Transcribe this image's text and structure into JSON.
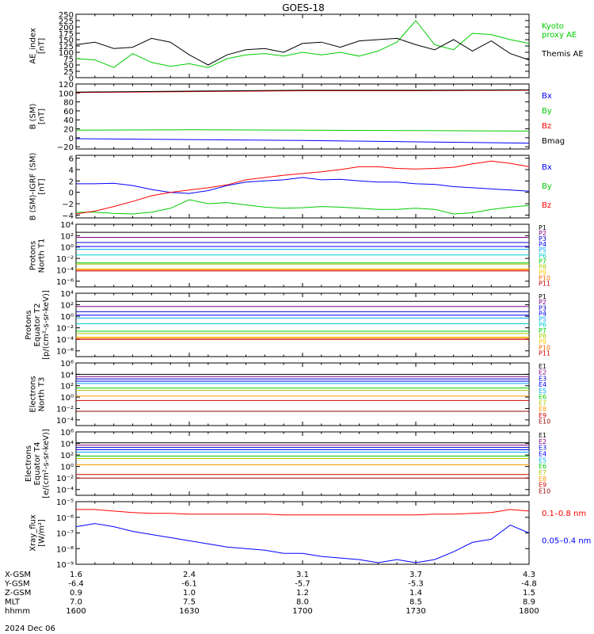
{
  "title": "GOES-18",
  "date": "2024 Dec 06",
  "x_axis": {
    "rows": [
      {
        "label": "X-GSM",
        "values": [
          "1.6",
          "2.4",
          "3.1",
          "3.7",
          "4.3"
        ]
      },
      {
        "label": "Y-GSM",
        "values": [
          "-6.4",
          "-6.1",
          "-5.7",
          "-5.3",
          "-4.8"
        ]
      },
      {
        "label": "Z-GSM",
        "values": [
          "0.9",
          "1.0",
          "1.2",
          "1.4",
          "1.5"
        ]
      },
      {
        "label": "MLT",
        "values": [
          "7.0",
          "7.5",
          "8.0",
          "8.5",
          "8.9"
        ]
      },
      {
        "label": "hhmm",
        "values": [
          "1600",
          "1630",
          "1700",
          "1730",
          "1800"
        ]
      }
    ]
  },
  "chart_data": [
    {
      "type": "line",
      "ylabel": "AE_index\n[nT]",
      "ylim": [
        0,
        250
      ],
      "yticks": [
        "0",
        "25",
        "50",
        "75",
        "100",
        "125",
        "150",
        "175",
        "200",
        "225",
        "250"
      ],
      "x": [
        1600,
        1605,
        1610,
        1615,
        1620,
        1625,
        1630,
        1635,
        1640,
        1645,
        1650,
        1655,
        1700,
        1705,
        1710,
        1715,
        1720,
        1725,
        1730,
        1735,
        1740,
        1745,
        1750,
        1755,
        1800
      ],
      "series": [
        {
          "name": "Kyoto proxy AE",
          "color": "#00cc00",
          "values": [
            75,
            70,
            40,
            95,
            60,
            45,
            55,
            40,
            75,
            90,
            95,
            85,
            100,
            90,
            100,
            85,
            105,
            140,
            225,
            130,
            110,
            175,
            170,
            150,
            135
          ]
        },
        {
          "name": "Themis AE",
          "color": "#000000",
          "values": [
            130,
            140,
            115,
            120,
            155,
            140,
            90,
            50,
            90,
            110,
            115,
            100,
            135,
            140,
            120,
            145,
            150,
            155,
            130,
            110,
            150,
            105,
            145,
            95,
            70
          ]
        }
      ]
    },
    {
      "type": "line",
      "ylabel": "B (SM)\n[nT]",
      "ylim": [
        -25,
        120
      ],
      "yticks": [
        "−20",
        "0",
        "20",
        "40",
        "60",
        "80",
        "100",
        "120"
      ],
      "x": [
        1600,
        1630,
        1700,
        1730,
        1800
      ],
      "series": [
        {
          "name": "Bx",
          "color": "#0000ff",
          "values": [
            -2,
            -4,
            -6,
            -9,
            -12
          ]
        },
        {
          "name": "By",
          "color": "#00cc00",
          "values": [
            17,
            18,
            17,
            16,
            15
          ]
        },
        {
          "name": "Bz",
          "color": "#ff0000",
          "values": [
            101,
            103,
            105,
            105,
            106
          ]
        },
        {
          "name": "Bmag",
          "color": "#000000",
          "values": [
            102,
            104,
            106,
            106,
            107
          ]
        }
      ]
    },
    {
      "type": "line",
      "ylabel": "B (SM)-IGRF (SM)\n[nT]",
      "ylim": [
        -4.5,
        6.5
      ],
      "yticks": [
        "−4",
        "−2",
        "0",
        "2",
        "4",
        "6"
      ],
      "x": [
        1600,
        1605,
        1610,
        1615,
        1620,
        1625,
        1630,
        1635,
        1640,
        1645,
        1650,
        1655,
        1700,
        1705,
        1710,
        1715,
        1720,
        1725,
        1730,
        1735,
        1740,
        1745,
        1750,
        1755,
        1800
      ],
      "series": [
        {
          "name": "Bx",
          "color": "#0000ff",
          "values": [
            1.5,
            1.5,
            1.6,
            1.2,
            0.5,
            0,
            -0.2,
            0.3,
            1.2,
            1.8,
            2.0,
            2.2,
            2.6,
            2.2,
            2.3,
            2.0,
            1.8,
            1.8,
            1.5,
            1.4,
            1.0,
            0.8,
            0.6,
            0.4,
            0.2
          ]
        },
        {
          "name": "By",
          "color": "#00cc00",
          "values": [
            -3.5,
            -3.5,
            -3.7,
            -3.8,
            -3.5,
            -2.8,
            -1.3,
            -2.0,
            -1.8,
            -2.2,
            -2.6,
            -2.8,
            -2.7,
            -2.5,
            -2.6,
            -2.8,
            -3.0,
            -3.0,
            -2.8,
            -3.0,
            -3.8,
            -3.6,
            -3.0,
            -2.6,
            -2.3
          ]
        },
        {
          "name": "Bz",
          "color": "#ff0000",
          "values": [
            -3.8,
            -3.3,
            -2.5,
            -1.6,
            -0.6,
            0,
            0.4,
            0.8,
            1.3,
            2.2,
            2.6,
            3.0,
            3.3,
            3.6,
            4.0,
            4.5,
            4.5,
            4.2,
            4.1,
            4.2,
            4.4,
            5.0,
            5.5,
            5.1,
            4.5
          ]
        }
      ]
    },
    {
      "type": "line",
      "ylabel": "Protons\nNorth T1",
      "scale": "log",
      "ylim_exp": [
        -7,
        4
      ],
      "yticks": [
        "10⁻⁶",
        "10⁻⁴",
        "10⁻²",
        "10⁰",
        "10²",
        "10⁴"
      ],
      "series": [
        {
          "name": "P1",
          "color": "#000000",
          "level": 2.6
        },
        {
          "name": "P2",
          "color": "#800080",
          "level": 1.7
        },
        {
          "name": "P3",
          "color": "#0000cc",
          "level": 0.8
        },
        {
          "name": "P4",
          "color": "#0000ff",
          "level": 0.1
        },
        {
          "name": "P5",
          "color": "#00aaff",
          "level": -0.4
        },
        {
          "name": "P6",
          "color": "#00cccc",
          "level": -1.4
        },
        {
          "name": "P7",
          "color": "#00cc00",
          "level": -2.8
        },
        {
          "name": "P8",
          "color": "#aacc00",
          "level": -3.0
        },
        {
          "name": "P9",
          "color": "#ffcc00",
          "level": -3.8
        },
        {
          "name": "P10",
          "color": "#ff6600",
          "level": -4.0
        },
        {
          "name": "P11",
          "color": "#cc0000",
          "level": -4.2
        }
      ]
    },
    {
      "type": "line",
      "ylabel": "Protons\nEquator T2\n[p/(cm²-s-sr-keV)]",
      "scale": "log",
      "ylim_exp": [
        -7,
        4
      ],
      "yticks": [
        "10⁻⁶",
        "10⁻⁴",
        "10⁻²",
        "10⁰",
        "10²",
        "10⁴"
      ],
      "series": [
        {
          "name": "P1",
          "color": "#000000",
          "level": 2.6
        },
        {
          "name": "P2",
          "color": "#800080",
          "level": 1.7
        },
        {
          "name": "P3",
          "color": "#0000cc",
          "level": 0.8
        },
        {
          "name": "P4",
          "color": "#0000ff",
          "level": 0.2
        },
        {
          "name": "P5",
          "color": "#00aaff",
          "level": -0.3
        },
        {
          "name": "P6",
          "color": "#00cccc",
          "level": -1.3
        },
        {
          "name": "P7",
          "color": "#00cc00",
          "level": -2.6
        },
        {
          "name": "P8",
          "color": "#aacc00",
          "level": -3.0
        },
        {
          "name": "P9",
          "color": "#ffcc00",
          "level": -3.6
        },
        {
          "name": "P10",
          "color": "#ff6600",
          "level": -3.8
        },
        {
          "name": "P11",
          "color": "#cc0000",
          "level": -4.0
        }
      ]
    },
    {
      "type": "line",
      "ylabel": "Electrons\nNorth T3",
      "scale": "log",
      "ylim_exp": [
        -5,
        6
      ],
      "yticks": [
        "10⁻⁴",
        "10⁻²",
        "10⁰",
        "10²",
        "10⁴",
        "10⁶"
      ],
      "series": [
        {
          "name": "E1",
          "color": "#000000",
          "level": 4.0
        },
        {
          "name": "E2",
          "color": "#800080",
          "level": 3.6
        },
        {
          "name": "E3",
          "color": "#0000cc",
          "level": 3.2
        },
        {
          "name": "E4",
          "color": "#0000ff",
          "level": 2.8
        },
        {
          "name": "E5",
          "color": "#00aaff",
          "level": 2.4
        },
        {
          "name": "E6",
          "color": "#00cc00",
          "level": 1.6
        },
        {
          "name": "E7",
          "color": "#aacc00",
          "level": 1.2
        },
        {
          "name": "E8",
          "color": "#ff9900",
          "level": 0.2
        },
        {
          "name": "E9",
          "color": "#cc0000",
          "level": -0.6
        },
        {
          "name": "E10",
          "color": "#990000",
          "level": -2.5
        }
      ]
    },
    {
      "type": "line",
      "ylabel": "Electrons\nEquator T4\n[e/(cm²-s-sr-keV)]",
      "scale": "log",
      "ylim_exp": [
        -5,
        6
      ],
      "yticks": [
        "10⁻⁴",
        "10⁻²",
        "10⁰",
        "10²",
        "10⁴",
        "10⁶"
      ],
      "series": [
        {
          "name": "E1",
          "color": "#000000",
          "level": 4.1
        },
        {
          "name": "E2",
          "color": "#800080",
          "level": 3.7
        },
        {
          "name": "E3",
          "color": "#0000cc",
          "level": 3.3
        },
        {
          "name": "E4",
          "color": "#0000ff",
          "level": 2.9
        },
        {
          "name": "E5",
          "color": "#00aaff",
          "level": 2.5
        },
        {
          "name": "E6",
          "color": "#00cc00",
          "level": 1.8
        },
        {
          "name": "E7",
          "color": "#aacc00",
          "level": 1.4
        },
        {
          "name": "E8",
          "color": "#ff9900",
          "level": 0.3
        },
        {
          "name": "E9",
          "color": "#cc0000",
          "level": -1.4
        },
        {
          "name": "E10",
          "color": "#990000",
          "level": -2.0
        }
      ]
    },
    {
      "type": "line",
      "ylabel": "Xray_flux\n[W/m²]",
      "scale": "log",
      "ylim_exp": [
        -9,
        -5
      ],
      "yticks": [
        "10⁻⁹",
        "10⁻⁸",
        "10⁻⁷",
        "10⁻⁶",
        "10⁻⁵"
      ],
      "x": [
        1600,
        1605,
        1610,
        1615,
        1620,
        1625,
        1630,
        1635,
        1640,
        1645,
        1650,
        1655,
        1700,
        1705,
        1710,
        1715,
        1720,
        1725,
        1730,
        1735,
        1740,
        1745,
        1750,
        1755,
        1800
      ],
      "series": [
        {
          "name": "0.1–0.8 nm",
          "color": "#ff0000",
          "values_exp": [
            -5.5,
            -5.5,
            -5.6,
            -5.7,
            -5.75,
            -5.75,
            -5.8,
            -5.8,
            -5.8,
            -5.8,
            -5.8,
            -5.85,
            -5.85,
            -5.85,
            -5.85,
            -5.85,
            -5.85,
            -5.85,
            -5.85,
            -5.8,
            -5.8,
            -5.75,
            -5.7,
            -5.5,
            -5.6
          ]
        },
        {
          "name": "0.05–0.4 nm",
          "color": "#0000ff",
          "values_exp": [
            -6.6,
            -6.4,
            -6.6,
            -6.9,
            -7.1,
            -7.3,
            -7.5,
            -7.7,
            -7.9,
            -8.0,
            -8.1,
            -8.3,
            -8.3,
            -8.5,
            -8.6,
            -8.7,
            -8.9,
            -8.7,
            -8.9,
            -8.7,
            -8.2,
            -7.6,
            -7.4,
            -6.5,
            -7.0
          ]
        }
      ]
    }
  ],
  "legends": [
    [
      "Kyoto\nproxy AE",
      "Themis AE"
    ],
    [
      "Bx",
      "By",
      "Bz",
      "Bmag"
    ],
    [
      "Bx",
      "By",
      "Bz"
    ],
    [
      "P1",
      "P2",
      "P3",
      "P4",
      "P5",
      "P6",
      "P7",
      "P8",
      "P9",
      "P10",
      "P11"
    ],
    [
      "P1",
      "P2",
      "P3",
      "P4",
      "P5",
      "P6",
      "P7",
      "P8",
      "P9",
      "P10",
      "P11"
    ],
    [
      "E1",
      "E2",
      "E3",
      "E4",
      "E5",
      "E6",
      "E7",
      "E8",
      "E9",
      "E10"
    ],
    [
      "E1",
      "E2",
      "E3",
      "E4",
      "E5",
      "E6",
      "E7",
      "E8",
      "E9",
      "E10"
    ],
    [
      "0.1–0.8 nm",
      "0.05–0.4 nm"
    ]
  ]
}
